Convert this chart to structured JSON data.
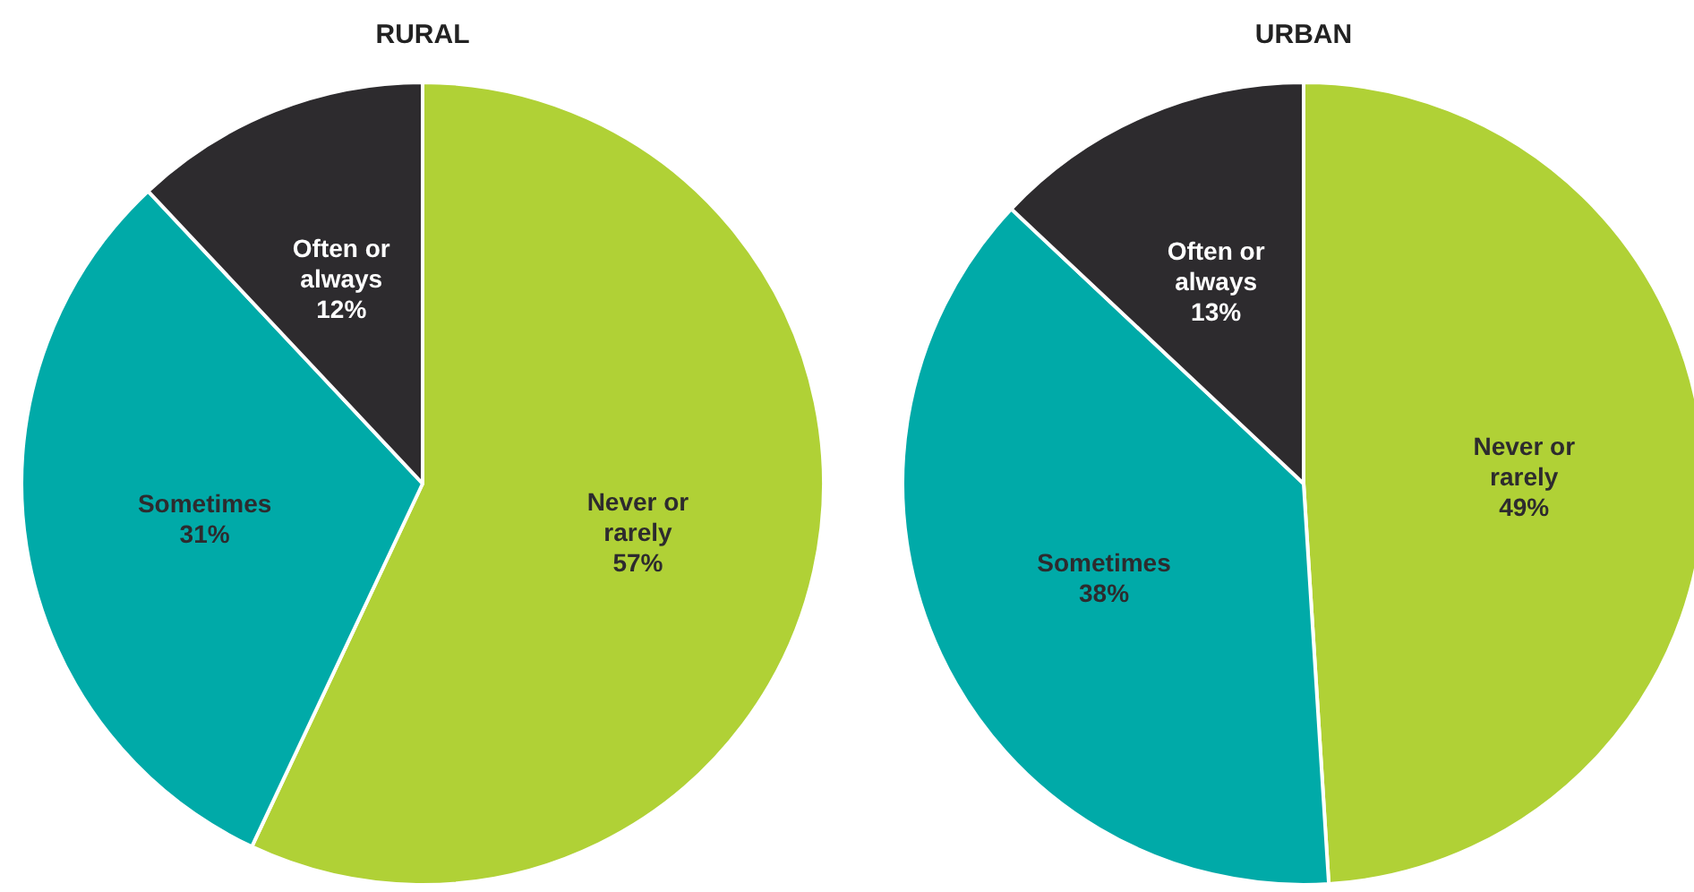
{
  "chart_data": [
    {
      "type": "pie",
      "title": "RURAL",
      "categories": [
        "Never or rarely",
        "Sometimes",
        "Often or always"
      ],
      "values": [
        57,
        31,
        12
      ],
      "value_labels": [
        "57%",
        "31%",
        "12%"
      ],
      "colors": [
        "#b0d136",
        "#00aaa8",
        "#2d2b2e"
      ]
    },
    {
      "type": "pie",
      "title": "URBAN",
      "categories": [
        "Never or rarely",
        "Sometimes",
        "Often or always"
      ],
      "values": [
        49,
        38,
        13
      ],
      "value_labels": [
        "49%",
        "38%",
        "13%"
      ],
      "colors": [
        "#b0d136",
        "#00aaa8",
        "#2d2b2e"
      ]
    }
  ]
}
